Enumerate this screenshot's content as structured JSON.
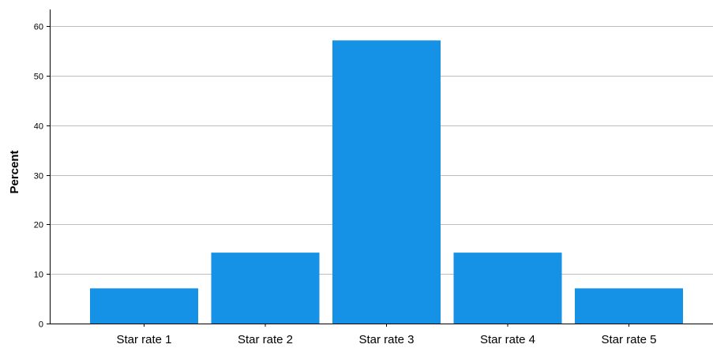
{
  "chart_data": {
    "type": "bar",
    "categories": [
      "Star rate 1",
      "Star rate 2",
      "Star rate 3",
      "Star rate 4",
      "Star rate 5"
    ],
    "values": [
      7.1,
      14.3,
      57.1,
      14.3,
      7.1
    ],
    "title": "",
    "xlabel": "",
    "ylabel": "Percent",
    "ylim": [
      0,
      63
    ],
    "yticks": [
      0,
      10,
      20,
      30,
      40,
      50,
      60
    ],
    "grid": true,
    "legend": "none",
    "bar_color": "#1591E6",
    "grid_color": "#BDBDBD",
    "axis_color": "#000000"
  }
}
